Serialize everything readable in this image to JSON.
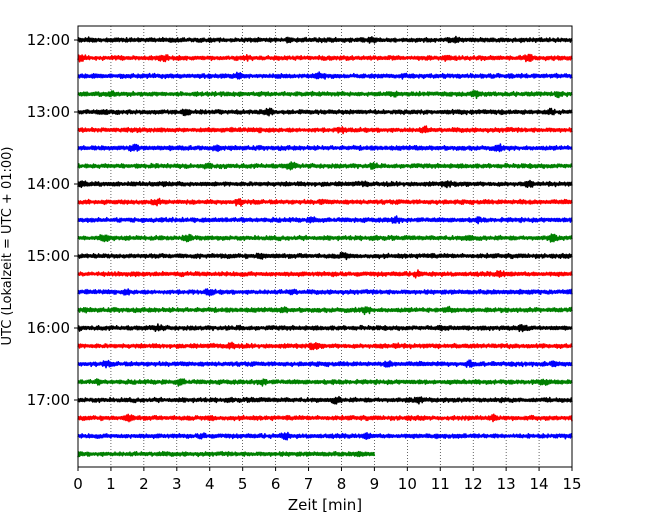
{
  "chart_data": {
    "type": "line",
    "title": "",
    "xlabel": "Zeit  [min]",
    "ylabel": "UTC (Lokalzeit = UTC + 01:00)",
    "xlim": [
      0,
      15
    ],
    "x_ticks": [
      0,
      1,
      2,
      3,
      4,
      5,
      6,
      7,
      8,
      9,
      10,
      11,
      12,
      13,
      14,
      15
    ],
    "y_tick_labels": [
      "12:00",
      "13:00",
      "14:00",
      "15:00",
      "16:00",
      "17:00"
    ],
    "grid": "vertical dotted lines at each minute",
    "trace_interval_minutes": 15,
    "trace_colors": [
      "#000000",
      "#ff0000",
      "#0000ff",
      "#008000"
    ],
    "traces": [
      {
        "start": "12:00",
        "color": "#000000",
        "duration_min": 15
      },
      {
        "start": "12:15",
        "color": "#ff0000",
        "duration_min": 15
      },
      {
        "start": "12:30",
        "color": "#0000ff",
        "duration_min": 15
      },
      {
        "start": "12:45",
        "color": "#008000",
        "duration_min": 15
      },
      {
        "start": "13:00",
        "color": "#000000",
        "duration_min": 15
      },
      {
        "start": "13:15",
        "color": "#ff0000",
        "duration_min": 15
      },
      {
        "start": "13:30",
        "color": "#0000ff",
        "duration_min": 15
      },
      {
        "start": "13:45",
        "color": "#008000",
        "duration_min": 15
      },
      {
        "start": "14:00",
        "color": "#000000",
        "duration_min": 15
      },
      {
        "start": "14:15",
        "color": "#ff0000",
        "duration_min": 15
      },
      {
        "start": "14:30",
        "color": "#0000ff",
        "duration_min": 15
      },
      {
        "start": "14:45",
        "color": "#008000",
        "duration_min": 15
      },
      {
        "start": "15:00",
        "color": "#000000",
        "duration_min": 15
      },
      {
        "start": "15:15",
        "color": "#ff0000",
        "duration_min": 15
      },
      {
        "start": "15:30",
        "color": "#0000ff",
        "duration_min": 15
      },
      {
        "start": "15:45",
        "color": "#008000",
        "duration_min": 15
      },
      {
        "start": "16:00",
        "color": "#000000",
        "duration_min": 15
      },
      {
        "start": "16:15",
        "color": "#ff0000",
        "duration_min": 15
      },
      {
        "start": "16:30",
        "color": "#0000ff",
        "duration_min": 15
      },
      {
        "start": "16:45",
        "color": "#008000",
        "duration_min": 15
      },
      {
        "start": "17:00",
        "color": "#000000",
        "duration_min": 15
      },
      {
        "start": "17:15",
        "color": "#ff0000",
        "duration_min": 15
      },
      {
        "start": "17:30",
        "color": "#0000ff",
        "duration_min": 15
      },
      {
        "start": "17:45",
        "color": "#008000",
        "duration_min": 9
      }
    ]
  }
}
